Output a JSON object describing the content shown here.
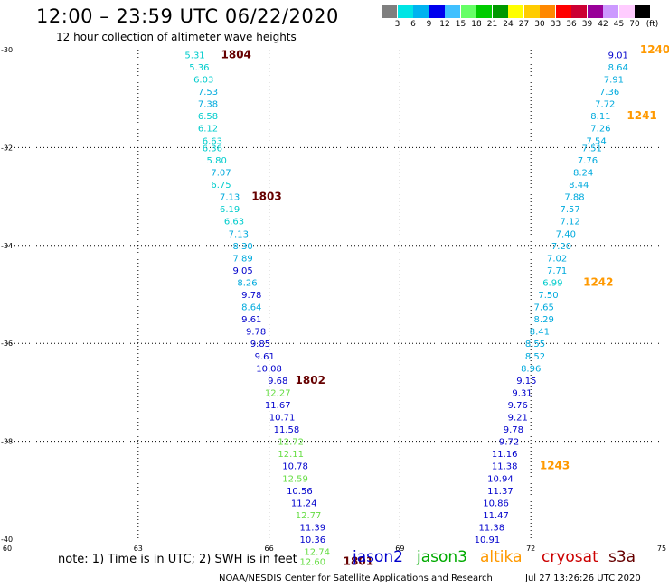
{
  "title": "12:00 – 23:59 UTC 06/22/2020",
  "subtitle": "12 hour collection of altimeter wave heights",
  "note": "note:  1) Time is in UTC; 2) SWH is in feet",
  "footer": "NOAA/NESDIS Center for Satellite Applications and Research",
  "footer_date": "Jul 27 13:26:26 UTC 2020",
  "satellites": [
    {
      "name": "jason2",
      "color": "#0000cc"
    },
    {
      "name": "jason3",
      "color": "#00aa00"
    },
    {
      "name": "altika",
      "color": "#ff9900"
    },
    {
      "name": "cryosat",
      "color": "#cc0000"
    },
    {
      "name": "s3a",
      "color": "#660000"
    }
  ],
  "colorbar": {
    "unit": "(ft)",
    "ticks": [
      "3",
      "6",
      "9",
      "12",
      "15",
      "18",
      "21",
      "24",
      "27",
      "30",
      "33",
      "36",
      "39",
      "42",
      "45",
      "70"
    ],
    "colors": [
      "#7f7f7f",
      "#00e5e5",
      "#00b3f0",
      "#0000ee",
      "#40c0ff",
      "#66ff66",
      "#00cc00",
      "#009900",
      "#ffff00",
      "#ffcc00",
      "#ff8800",
      "#ff0000",
      "#cc0033",
      "#990099",
      "#cc99ff",
      "#ffccff",
      "#000000"
    ]
  },
  "chart_data": {
    "type": "scatter",
    "xlim": [
      60,
      75
    ],
    "ylim": [
      -40,
      -30
    ],
    "x_ticks": [
      60,
      63,
      66,
      69,
      72,
      75
    ],
    "y_ticks": [
      -30,
      -32,
      -34,
      -36,
      -38,
      -40
    ],
    "x_tick_labels": [
      "60",
      "63",
      "66",
      "69",
      "72",
      "75"
    ],
    "y_tick_labels": [
      "-30",
      "-32",
      "-34",
      "-36",
      "-38",
      "-40"
    ],
    "grid": true,
    "points": [
      {
        "x": 64.3,
        "y": -30.1,
        "label": "5.31",
        "color": "#00cccc"
      },
      {
        "x": 64.4,
        "y": -30.35,
        "label": "5.36",
        "color": "#00cccc"
      },
      {
        "x": 64.5,
        "y": -30.6,
        "label": "6.03",
        "color": "#00cccc"
      },
      {
        "x": 64.6,
        "y": -30.85,
        "label": "7.53",
        "color": "#00aadd"
      },
      {
        "x": 64.6,
        "y": -31.1,
        "label": "7.38",
        "color": "#00aadd"
      },
      {
        "x": 64.6,
        "y": -31.35,
        "label": "6.58",
        "color": "#00cccc"
      },
      {
        "x": 64.6,
        "y": -31.6,
        "label": "6.12",
        "color": "#00cccc"
      },
      {
        "x": 64.7,
        "y": -31.85,
        "label": "6.63",
        "color": "#00cccc"
      },
      {
        "x": 64.7,
        "y": -32.0,
        "label": "6.36",
        "color": "#00cccc"
      },
      {
        "x": 64.8,
        "y": -32.25,
        "label": "5.80",
        "color": "#00cccc"
      },
      {
        "x": 64.9,
        "y": -32.5,
        "label": "7.07",
        "color": "#00aadd"
      },
      {
        "x": 64.9,
        "y": -32.75,
        "label": "6.75",
        "color": "#00cccc"
      },
      {
        "x": 65.1,
        "y": -33.0,
        "label": "7.13",
        "color": "#00aadd"
      },
      {
        "x": 65.1,
        "y": -33.25,
        "label": "6.19",
        "color": "#00cccc"
      },
      {
        "x": 65.2,
        "y": -33.5,
        "label": "6.63",
        "color": "#00cccc"
      },
      {
        "x": 65.3,
        "y": -33.75,
        "label": "7.13",
        "color": "#00aadd"
      },
      {
        "x": 65.4,
        "y": -34.0,
        "label": "8.30",
        "color": "#00aadd"
      },
      {
        "x": 65.4,
        "y": -34.25,
        "label": "7.89",
        "color": "#00aadd"
      },
      {
        "x": 65.4,
        "y": -34.5,
        "label": "9.05",
        "color": "#0000cc"
      },
      {
        "x": 65.5,
        "y": -34.75,
        "label": "8.26",
        "color": "#00aadd"
      },
      {
        "x": 65.6,
        "y": -35.0,
        "label": "9.78",
        "color": "#0000cc"
      },
      {
        "x": 65.6,
        "y": -35.25,
        "label": "8.64",
        "color": "#00aadd"
      },
      {
        "x": 65.6,
        "y": -35.5,
        "label": "9.61",
        "color": "#0000cc"
      },
      {
        "x": 65.7,
        "y": -35.75,
        "label": "9.78",
        "color": "#0000cc"
      },
      {
        "x": 65.8,
        "y": -36.0,
        "label": "9.85",
        "color": "#0000cc"
      },
      {
        "x": 65.9,
        "y": -36.25,
        "label": "9.61",
        "color": "#0000cc"
      },
      {
        "x": 66.0,
        "y": -36.5,
        "label": "10.08",
        "color": "#0000cc"
      },
      {
        "x": 66.2,
        "y": -36.75,
        "label": "9.68",
        "color": "#0000cc"
      },
      {
        "x": 66.2,
        "y": -37.0,
        "label": "12.27",
        "color": "#66dd44"
      },
      {
        "x": 66.2,
        "y": -37.25,
        "label": "11.67",
        "color": "#0000cc"
      },
      {
        "x": 66.3,
        "y": -37.5,
        "label": "10.71",
        "color": "#0000cc"
      },
      {
        "x": 66.4,
        "y": -37.75,
        "label": "11.58",
        "color": "#0000cc"
      },
      {
        "x": 66.5,
        "y": -38.0,
        "label": "12.72",
        "color": "#66dd44"
      },
      {
        "x": 66.5,
        "y": -38.25,
        "label": "12.11",
        "color": "#66dd44"
      },
      {
        "x": 66.6,
        "y": -38.5,
        "label": "10.78",
        "color": "#0000cc"
      },
      {
        "x": 66.6,
        "y": -38.75,
        "label": "12.59",
        "color": "#66dd44"
      },
      {
        "x": 66.7,
        "y": -39.0,
        "label": "10.56",
        "color": "#0000cc"
      },
      {
        "x": 66.8,
        "y": -39.25,
        "label": "11.24",
        "color": "#0000cc"
      },
      {
        "x": 66.9,
        "y": -39.5,
        "label": "12.77",
        "color": "#66dd44"
      },
      {
        "x": 67.0,
        "y": -39.75,
        "label": "11.39",
        "color": "#0000cc"
      },
      {
        "x": 67.0,
        "y": -40.0,
        "label": "10.36",
        "color": "#0000cc"
      },
      {
        "x": 67.1,
        "y": -40.25,
        "label": "12.74",
        "color": "#66dd44"
      },
      {
        "x": 67.0,
        "y": -40.45,
        "label": "12.60",
        "color": "#66dd44"
      },
      {
        "x": 74.0,
        "y": -30.1,
        "label": "9.01",
        "color": "#0000cc"
      },
      {
        "x": 74.0,
        "y": -30.35,
        "label": "8.64",
        "color": "#00aadd"
      },
      {
        "x": 73.9,
        "y": -30.6,
        "label": "7.91",
        "color": "#00aadd"
      },
      {
        "x": 73.8,
        "y": -30.85,
        "label": "7.36",
        "color": "#00aadd"
      },
      {
        "x": 73.7,
        "y": -31.1,
        "label": "7.72",
        "color": "#00aadd"
      },
      {
        "x": 73.6,
        "y": -31.35,
        "label": "8.11",
        "color": "#00aadd"
      },
      {
        "x": 73.6,
        "y": -31.6,
        "label": "7.26",
        "color": "#00aadd"
      },
      {
        "x": 73.5,
        "y": -31.85,
        "label": "7.54",
        "color": "#00aadd"
      },
      {
        "x": 73.4,
        "y": -32.0,
        "label": "7.51",
        "color": "#00aadd"
      },
      {
        "x": 73.3,
        "y": -32.25,
        "label": "7.76",
        "color": "#00aadd"
      },
      {
        "x": 73.2,
        "y": -32.5,
        "label": "8.24",
        "color": "#00aadd"
      },
      {
        "x": 73.1,
        "y": -32.75,
        "label": "8.44",
        "color": "#00aadd"
      },
      {
        "x": 73.0,
        "y": -33.0,
        "label": "7.88",
        "color": "#00aadd"
      },
      {
        "x": 72.9,
        "y": -33.25,
        "label": "7.57",
        "color": "#00aadd"
      },
      {
        "x": 72.9,
        "y": -33.5,
        "label": "7.12",
        "color": "#00aadd"
      },
      {
        "x": 72.8,
        "y": -33.75,
        "label": "7.40",
        "color": "#00aadd"
      },
      {
        "x": 72.7,
        "y": -34.0,
        "label": "7.20",
        "color": "#00aadd"
      },
      {
        "x": 72.6,
        "y": -34.25,
        "label": "7.02",
        "color": "#00aadd"
      },
      {
        "x": 72.6,
        "y": -34.5,
        "label": "7.71",
        "color": "#00aadd"
      },
      {
        "x": 72.5,
        "y": -34.75,
        "label": "6.99",
        "color": "#00cccc"
      },
      {
        "x": 72.4,
        "y": -35.0,
        "label": "7.50",
        "color": "#00aadd"
      },
      {
        "x": 72.3,
        "y": -35.25,
        "label": "7.65",
        "color": "#00aadd"
      },
      {
        "x": 72.3,
        "y": -35.5,
        "label": "8.29",
        "color": "#00aadd"
      },
      {
        "x": 72.2,
        "y": -35.75,
        "label": "8.41",
        "color": "#00aadd"
      },
      {
        "x": 72.1,
        "y": -36.0,
        "label": "8.55",
        "color": "#00aadd"
      },
      {
        "x": 72.1,
        "y": -36.25,
        "label": "8.52",
        "color": "#00aadd"
      },
      {
        "x": 72.0,
        "y": -36.5,
        "label": "8.96",
        "color": "#00aadd"
      },
      {
        "x": 71.9,
        "y": -36.75,
        "label": "9.15",
        "color": "#0000cc"
      },
      {
        "x": 71.8,
        "y": -37.0,
        "label": "9.31",
        "color": "#0000cc"
      },
      {
        "x": 71.7,
        "y": -37.25,
        "label": "9.76",
        "color": "#0000cc"
      },
      {
        "x": 71.7,
        "y": -37.5,
        "label": "9.21",
        "color": "#0000cc"
      },
      {
        "x": 71.6,
        "y": -37.75,
        "label": "9.78",
        "color": "#0000cc"
      },
      {
        "x": 71.5,
        "y": -38.0,
        "label": "9.72",
        "color": "#0000cc"
      },
      {
        "x": 71.4,
        "y": -38.25,
        "label": "11.16",
        "color": "#0000cc"
      },
      {
        "x": 71.4,
        "y": -38.5,
        "label": "11.38",
        "color": "#0000cc"
      },
      {
        "x": 71.3,
        "y": -38.75,
        "label": "10.94",
        "color": "#0000cc"
      },
      {
        "x": 71.3,
        "y": -39.0,
        "label": "11.37",
        "color": "#0000cc"
      },
      {
        "x": 71.2,
        "y": -39.25,
        "label": "10.86",
        "color": "#0000cc"
      },
      {
        "x": 71.2,
        "y": -39.5,
        "label": "11.47",
        "color": "#0000cc"
      },
      {
        "x": 71.1,
        "y": -39.75,
        "label": "11.38",
        "color": "#0000cc"
      },
      {
        "x": 71.0,
        "y": -40.0,
        "label": "10.91",
        "color": "#0000cc"
      }
    ],
    "pass_labels": [
      {
        "x": 64.9,
        "y": -30.1,
        "label": "1804",
        "color": "#660000"
      },
      {
        "x": 65.6,
        "y": -33.0,
        "label": "1803",
        "color": "#660000"
      },
      {
        "x": 66.6,
        "y": -36.75,
        "label": "1802",
        "color": "#660000"
      },
      {
        "x": 67.7,
        "y": -40.45,
        "label": "1801",
        "color": "#660000"
      },
      {
        "x": 74.5,
        "y": -30.0,
        "label": "1240",
        "color": "#ff9900"
      },
      {
        "x": 74.2,
        "y": -31.35,
        "label": "1241",
        "color": "#ff9900"
      },
      {
        "x": 73.2,
        "y": -34.75,
        "label": "1242",
        "color": "#ff9900"
      },
      {
        "x": 72.2,
        "y": -38.5,
        "label": "1243",
        "color": "#ff9900"
      }
    ]
  }
}
